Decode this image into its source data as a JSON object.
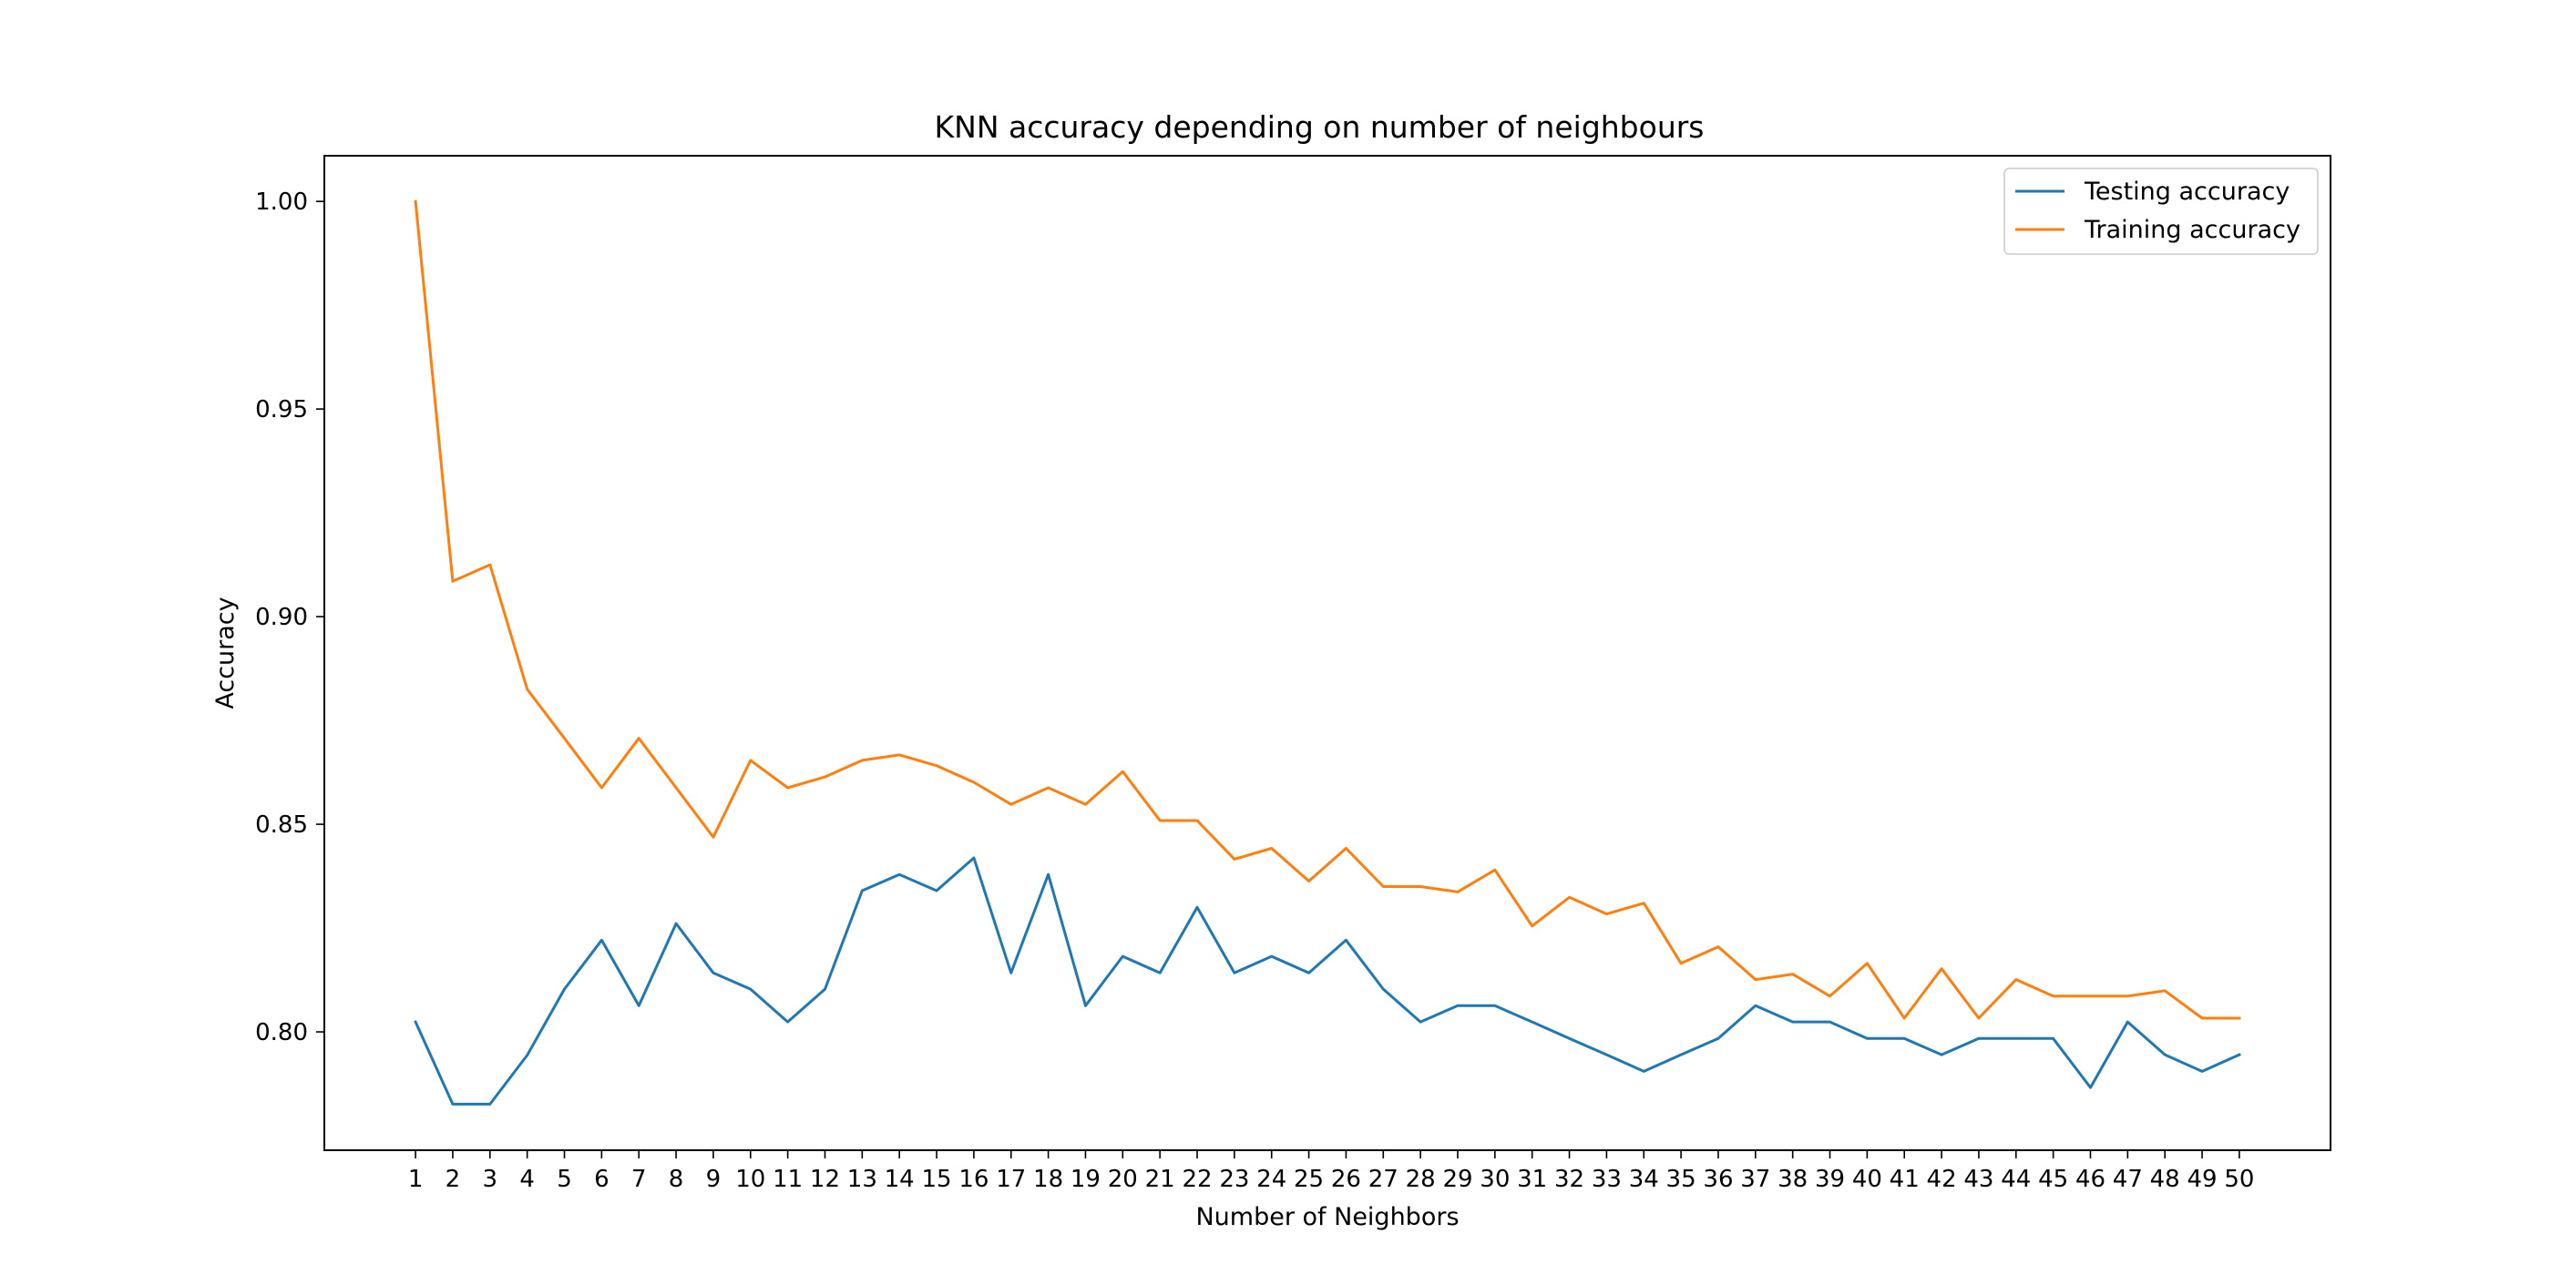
{
  "chart_data": {
    "type": "line",
    "title": "KNN accuracy depending on number of neighbours",
    "xlabel": "Number of Neighbors",
    "ylabel": "Accuracy",
    "x": [
      1,
      2,
      3,
      4,
      5,
      6,
      7,
      8,
      9,
      10,
      11,
      12,
      13,
      14,
      15,
      16,
      17,
      18,
      19,
      20,
      21,
      22,
      23,
      24,
      25,
      26,
      27,
      28,
      29,
      30,
      31,
      32,
      33,
      34,
      35,
      36,
      37,
      38,
      39,
      40,
      41,
      42,
      43,
      44,
      45,
      46,
      47,
      48,
      49,
      50
    ],
    "xlim": [
      -1.45,
      52.45
    ],
    "ylim": [
      0.7715,
      1.011
    ],
    "yticks": [
      "0.80",
      "0.85",
      "0.90",
      "0.95",
      "1.00"
    ],
    "grid": false,
    "legend_position": "upper right",
    "series": [
      {
        "name": "Testing accuracy",
        "color": "#1f77b4",
        "values": [
          0.8024,
          0.7826,
          0.7826,
          0.7944,
          0.8103,
          0.8221,
          0.8063,
          0.8261,
          0.8142,
          0.8103,
          0.8024,
          0.8103,
          0.834,
          0.8379,
          0.834,
          0.8419,
          0.8142,
          0.8379,
          0.8063,
          0.8182,
          0.8142,
          0.83,
          0.8142,
          0.8182,
          0.8142,
          0.8221,
          0.8103,
          0.8024,
          0.8063,
          0.8063,
          0.8024,
          0.7984,
          0.7945,
          0.7905,
          0.7945,
          0.7984,
          0.8063,
          0.8024,
          0.8024,
          0.7984,
          0.7984,
          0.7945,
          0.7984,
          0.7984,
          0.7984,
          0.7866,
          0.8024,
          0.7945,
          0.7905,
          0.7945
        ]
      },
      {
        "name": "Training accuracy",
        "color": "#ff7f0e",
        "values": [
          1.0,
          0.9085,
          0.9125,
          0.8825,
          0.8707,
          0.8588,
          0.8707,
          0.8588,
          0.8469,
          0.8654,
          0.8588,
          0.8614,
          0.8654,
          0.8667,
          0.8641,
          0.8601,
          0.8548,
          0.8588,
          0.8548,
          0.8627,
          0.8509,
          0.8509,
          0.8416,
          0.8442,
          0.8363,
          0.8442,
          0.835,
          0.835,
          0.8337,
          0.839,
          0.8255,
          0.8324,
          0.8284,
          0.831,
          0.8165,
          0.8205,
          0.8126,
          0.8139,
          0.8086,
          0.8165,
          0.8033,
          0.8152,
          0.8033,
          0.8126,
          0.8086,
          0.8086,
          0.8086,
          0.8099,
          0.8033,
          0.8033
        ]
      }
    ]
  }
}
